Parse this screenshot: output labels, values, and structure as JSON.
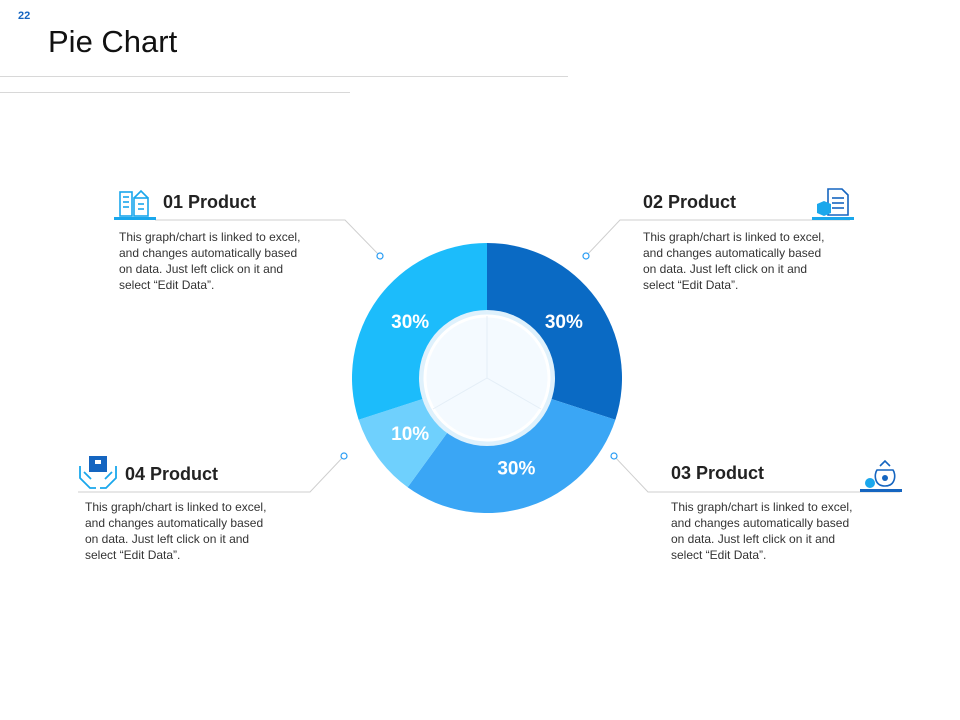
{
  "slide": {
    "number": "22",
    "title": "Pie Chart"
  },
  "chart_data": {
    "type": "pie",
    "donut": true,
    "categories": [
      "02 Product",
      "03 Product",
      "04 Product",
      "01 Product"
    ],
    "values": [
      30,
      30,
      10,
      30
    ],
    "value_labels": [
      "30%",
      "30%",
      "10%",
      "30%"
    ],
    "colors": [
      "#0a6ac4",
      "#3aa6f5",
      "#6fd0fd",
      "#1cbcfb"
    ],
    "start": "top, clockwise"
  },
  "products": [
    {
      "title": "01 Product",
      "description": "This graph/chart is linked to excel, and changes automatically based on data. Just left click on it and select “Edit Data”.",
      "icon": "buildings-icon"
    },
    {
      "title": "02 Product",
      "description": "This graph/chart is linked to excel, and changes automatically based on data. Just left click on it and select “Edit Data”.",
      "icon": "document-box-icon"
    },
    {
      "title": "03 Product",
      "description": "This graph/chart is linked to excel, and changes automatically based on data. Just left click on it and select “Edit Data”.",
      "icon": "money-bag-icon"
    },
    {
      "title": "04 Product",
      "description": "This graph/chart is linked to excel, and changes automatically based on data. Just left click on it and select “Edit Data”.",
      "icon": "hands-box-icon"
    }
  ]
}
